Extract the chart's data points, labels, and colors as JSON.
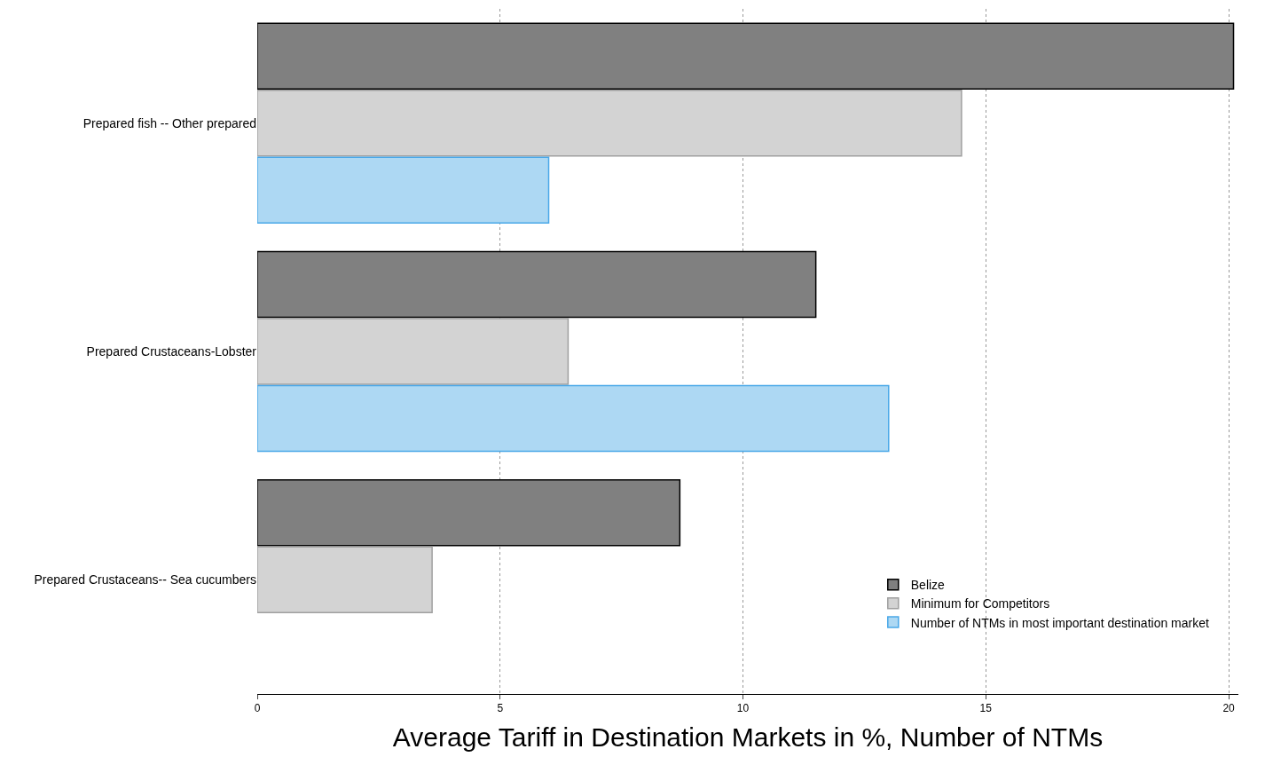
{
  "chart_data": {
    "type": "bar",
    "orientation": "horizontal",
    "xlabel": "Average Tariff in Destination Markets in %, Number of NTMs",
    "categories": [
      "Prepared fish -- Other prepared",
      "Prepared Crustaceans-Lobster",
      "Prepared Crustaceans-- Sea cucumbers"
    ],
    "series": [
      {
        "name": "Belize",
        "color": "#808080",
        "values": [
          20.1,
          11.5,
          8.7
        ]
      },
      {
        "name": "Minimum for Competitors",
        "color": "#d3d3d3",
        "values": [
          14.5,
          6.4,
          3.6
        ]
      },
      {
        "name": "Number of NTMs in most important destination market",
        "color": "#add8f3",
        "values": [
          6,
          13,
          null
        ]
      }
    ],
    "xlim": [
      0,
      20.2
    ],
    "xticks": [
      0,
      5,
      10,
      15,
      20
    ],
    "grid": "x",
    "legend": "bottom right"
  }
}
